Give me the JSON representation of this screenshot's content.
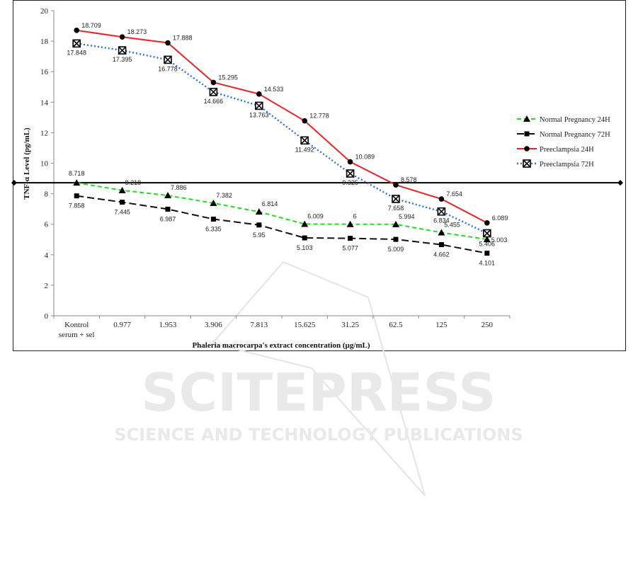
{
  "chart_data": {
    "type": "line",
    "xlabel": "Phaleria macrocarpa's extract concentration (µg/mL)",
    "ylabel": "TNF-α Level  (pg/mL)",
    "ylim": [
      0,
      20
    ],
    "yticks": [
      0,
      2,
      4,
      6,
      8,
      10,
      12,
      14,
      16,
      18,
      20
    ],
    "categories": [
      "Kontrol serum + sel",
      "0.977",
      "1.953",
      "3.906",
      "7.813",
      "15.625",
      "31.25",
      "62.5",
      "125",
      "250"
    ],
    "category_lines": [
      [
        "Kontrol",
        "serum + sel"
      ],
      [
        "0.977"
      ],
      [
        "1.953"
      ],
      [
        "3.906"
      ],
      [
        "7.813"
      ],
      [
        "15.625"
      ],
      [
        "31.25"
      ],
      [
        "62.5"
      ],
      [
        "125"
      ],
      [
        "250"
      ]
    ],
    "reference_line": {
      "value": 8.718
    },
    "legend_position": "right",
    "grid": false,
    "series": [
      {
        "name": "Normal Pregnancy 24H",
        "color": "#22dd22",
        "dash": "dashed",
        "marker": "triangle",
        "values": [
          8.718,
          8.218,
          7.886,
          7.382,
          6.814,
          6.009,
          6,
          5.994,
          5.455,
          5.003
        ],
        "labels": [
          "8.718",
          "8.218",
          "7.886",
          "7.382",
          "6.814",
          "6.009",
          "6",
          "5.994",
          "5.455",
          "5.003"
        ]
      },
      {
        "name": "Normal Pregnancy 72H",
        "color": "#111111",
        "dash": "longdash",
        "marker": "square",
        "values": [
          7.858,
          7.445,
          6.987,
          6.335,
          5.95,
          5.103,
          5.077,
          5.009,
          4.662,
          4.101
        ],
        "labels": [
          "7.858",
          "7.445",
          "6.987",
          "6.335",
          "5.95",
          "5.103",
          "5.077",
          "5.009",
          "4.662",
          "4.101"
        ]
      },
      {
        "name": "Preeclampsia 24H",
        "color": "#ee2222",
        "dash": "solid",
        "marker": "circle",
        "values": [
          18.709,
          18.273,
          17.888,
          15.295,
          14.533,
          12.778,
          10.089,
          8.578,
          7.654,
          6.089
        ],
        "labels": [
          "18.709",
          "18.273",
          "17.888",
          "15.295",
          "14.533",
          "12.778",
          "10.089",
          "8.578",
          "7.654",
          "6.089"
        ]
      },
      {
        "name": "Preeclampsia 72H",
        "color": "#2a6fdd",
        "dash": "dotted",
        "marker": "xsquare",
        "values": [
          17.848,
          17.395,
          16.778,
          14.666,
          13.763,
          11.492,
          9.325,
          7.658,
          6.834,
          5.406
        ],
        "labels": [
          "17.848",
          "17.395",
          "16.778",
          "14.666",
          "13.763",
          "11.492",
          "9.325",
          "7.658",
          "6.834",
          "5.406"
        ]
      }
    ]
  },
  "watermark": {
    "line1": "SCITEPRESS",
    "line2": "SCIENCE AND TECHNOLOGY PUBLICATIONS"
  }
}
